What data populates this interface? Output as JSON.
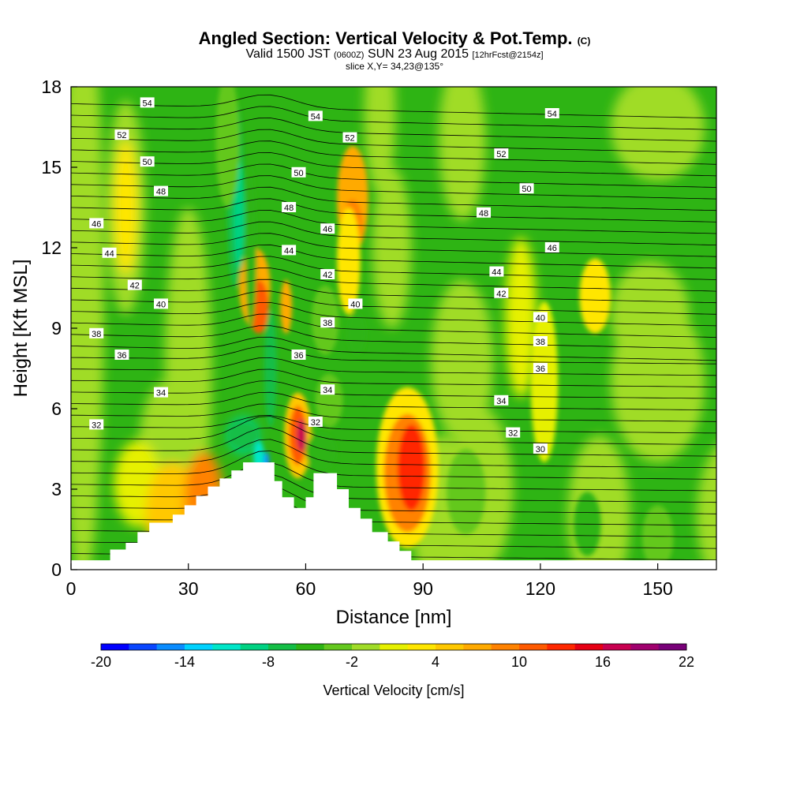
{
  "title": {
    "main": "Angled Section: Vertical Velocity & Pot.Temp.",
    "main_tag": "(C)",
    "valid_prefix": "Valid 1500 JST",
    "valid_utc": "(0600Z)",
    "valid_date": "SUN 23 Aug 2015",
    "fcst": "[12hrFcst@2154z]",
    "slice": "slice X,Y= 34,23@135°"
  },
  "colors": {
    "terrain": "#ffffff",
    "contour": "#000000",
    "scale": [
      "#0000ff",
      "#0a46ff",
      "#0a8cff",
      "#00d2ff",
      "#00e6c8",
      "#00d282",
      "#14be46",
      "#2eb414",
      "#64c81e",
      "#a0dc28",
      "#e6f000",
      "#ffe600",
      "#ffc800",
      "#ffaa00",
      "#ff8200",
      "#ff5a00",
      "#ff2800",
      "#e60014",
      "#c80050",
      "#a0006e",
      "#780078"
    ]
  },
  "chart_data": {
    "type": "heatmap",
    "xlabel": "Distance [nm]",
    "ylabel": "Height [Kft MSL]",
    "xlim": [
      0,
      165
    ],
    "ylim": [
      0,
      18
    ],
    "xticks": [
      0,
      30,
      60,
      90,
      120,
      150
    ],
    "yticks": [
      0,
      3,
      6,
      9,
      12,
      15,
      18
    ],
    "colorbar": {
      "title": "Vertical Velocity [cm/s]",
      "min": -20,
      "max": 22,
      "step": 2,
      "ticks": [
        -20,
        -14,
        -8,
        -2,
        4,
        10,
        16,
        22
      ]
    },
    "theta_contour_labels": [
      {
        "v": "54",
        "x": 19.5,
        "y": 17.4
      },
      {
        "v": "52",
        "x": 13,
        "y": 16.2
      },
      {
        "v": "50",
        "x": 19.5,
        "y": 15.2
      },
      {
        "v": "48",
        "x": 23,
        "y": 14.1
      },
      {
        "v": "46",
        "x": 6.5,
        "y": 12.9
      },
      {
        "v": "44",
        "x": 9.8,
        "y": 11.8
      },
      {
        "v": "42",
        "x": 16.3,
        "y": 10.6
      },
      {
        "v": "40",
        "x": 23,
        "y": 9.9
      },
      {
        "v": "38",
        "x": 6.5,
        "y": 8.8
      },
      {
        "v": "36",
        "x": 13,
        "y": 8.0
      },
      {
        "v": "34",
        "x": 23,
        "y": 6.6
      },
      {
        "v": "32",
        "x": 6.5,
        "y": 5.4
      },
      {
        "v": "54",
        "x": 62.5,
        "y": 16.9
      },
      {
        "v": "52",
        "x": 71.3,
        "y": 16.1
      },
      {
        "v": "50",
        "x": 58.2,
        "y": 14.8
      },
      {
        "v": "48",
        "x": 55.7,
        "y": 13.5
      },
      {
        "v": "46",
        "x": 65.6,
        "y": 12.7
      },
      {
        "v": "44",
        "x": 55.7,
        "y": 11.9
      },
      {
        "v": "42",
        "x": 65.6,
        "y": 11.0
      },
      {
        "v": "40",
        "x": 72.7,
        "y": 9.9
      },
      {
        "v": "38",
        "x": 65.6,
        "y": 9.2
      },
      {
        "v": "36",
        "x": 58.2,
        "y": 8.0
      },
      {
        "v": "34",
        "x": 65.6,
        "y": 6.7
      },
      {
        "v": "32",
        "x": 62.5,
        "y": 5.5
      },
      {
        "v": "54",
        "x": 123,
        "y": 17.0
      },
      {
        "v": "52",
        "x": 110,
        "y": 15.5
      },
      {
        "v": "50",
        "x": 116.5,
        "y": 14.2
      },
      {
        "v": "48",
        "x": 105.5,
        "y": 13.3
      },
      {
        "v": "46",
        "x": 123,
        "y": 12.0
      },
      {
        "v": "44",
        "x": 108.8,
        "y": 11.1
      },
      {
        "v": "42",
        "x": 110,
        "y": 10.3
      },
      {
        "v": "40",
        "x": 120,
        "y": 9.4
      },
      {
        "v": "38",
        "x": 120,
        "y": 8.5
      },
      {
        "v": "36",
        "x": 120,
        "y": 7.5
      },
      {
        "v": "34",
        "x": 110,
        "y": 6.3
      },
      {
        "v": "32",
        "x": 113,
        "y": 5.1
      },
      {
        "v": "30",
        "x": 120,
        "y": 4.5
      }
    ]
  }
}
